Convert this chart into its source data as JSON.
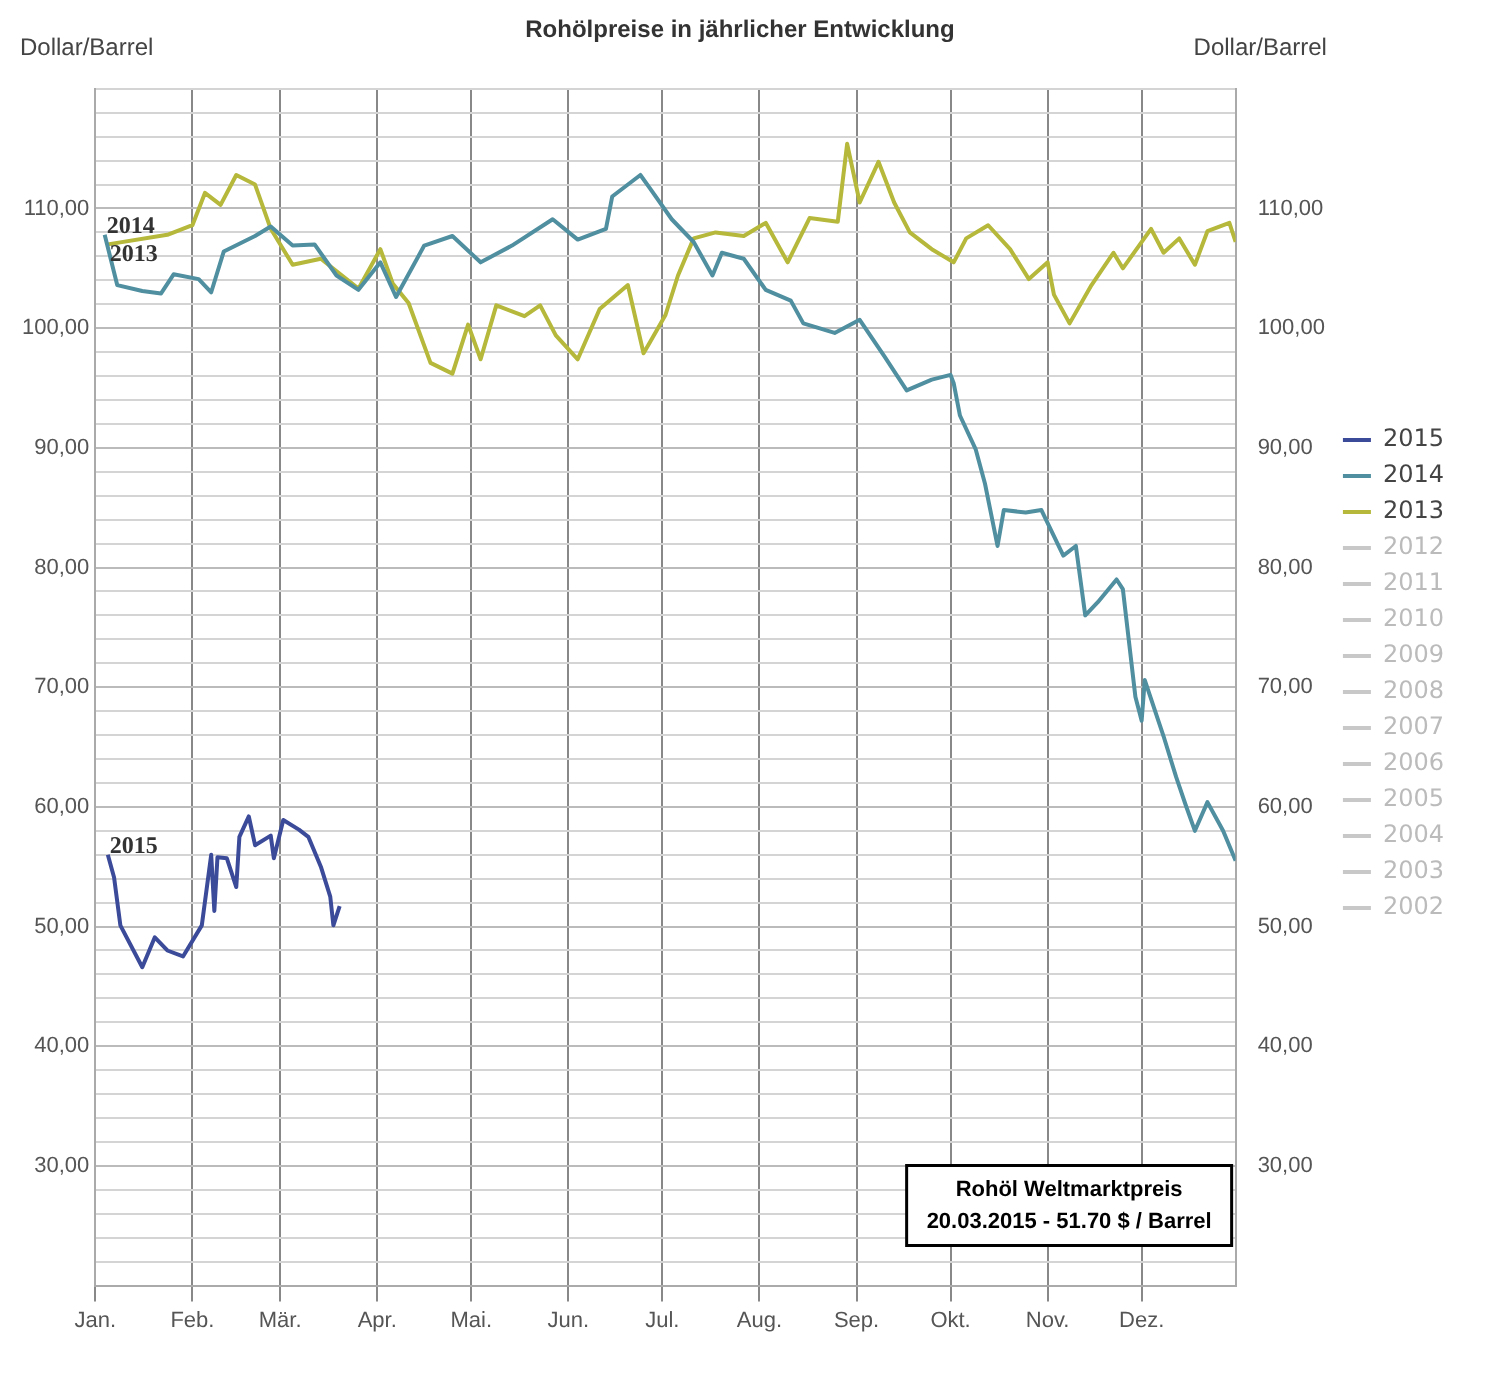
{
  "chart_data": {
    "type": "line",
    "title": "Rohölpreise in jährlicher Entwicklung",
    "ylabel": "Dollar/Barrel",
    "y2label": "Dollar/Barrel",
    "annotations": [
      "Rohöl Weltmarktpreis",
      "20.03.2015 - 51.70 $ / Barrel"
    ],
    "xlim": [
      "--01-01",
      "--12-31"
    ],
    "xticks": [
      {
        "value": "--01-01",
        "label": "Jan."
      },
      {
        "value": "--02-01",
        "label": "Feb."
      },
      {
        "value": "--03-01",
        "label": "Mär."
      },
      {
        "value": "--04-01",
        "label": "Apr."
      },
      {
        "value": "--05-01",
        "label": "Mai."
      },
      {
        "value": "--06-01",
        "label": "Jun."
      },
      {
        "value": "--07-01",
        "label": "Jul."
      },
      {
        "value": "--08-01",
        "label": "Aug."
      },
      {
        "value": "--09-01",
        "label": "Sep."
      },
      {
        "value": "--10-01",
        "label": "Okt."
      },
      {
        "value": "--11-01",
        "label": "Nov."
      },
      {
        "value": "--12-01",
        "label": "Dez."
      }
    ],
    "ylim": [
      20,
      120
    ],
    "yticks": [
      {
        "value": 20,
        "label": null
      },
      {
        "value": 22,
        "label": null
      },
      {
        "value": 24,
        "label": null
      },
      {
        "value": 26,
        "label": null
      },
      {
        "value": 28,
        "label": null
      },
      {
        "value": 30,
        "label": "30,00"
      },
      {
        "value": 32,
        "label": null
      },
      {
        "value": 34,
        "label": null
      },
      {
        "value": 36,
        "label": null
      },
      {
        "value": 38,
        "label": null
      },
      {
        "value": 40,
        "label": "40,00"
      },
      {
        "value": 42,
        "label": null
      },
      {
        "value": 44,
        "label": null
      },
      {
        "value": 46,
        "label": null
      },
      {
        "value": 48,
        "label": null
      },
      {
        "value": 50,
        "label": "50,00"
      },
      {
        "value": 52,
        "label": null
      },
      {
        "value": 54,
        "label": null
      },
      {
        "value": 56,
        "label": null
      },
      {
        "value": 58,
        "label": null
      },
      {
        "value": 60,
        "label": "60,00"
      },
      {
        "value": 62,
        "label": null
      },
      {
        "value": 64,
        "label": null
      },
      {
        "value": 66,
        "label": null
      },
      {
        "value": 68,
        "label": null
      },
      {
        "value": 70,
        "label": "70,00"
      },
      {
        "value": 72,
        "label": null
      },
      {
        "value": 74,
        "label": null
      },
      {
        "value": 76,
        "label": null
      },
      {
        "value": 78,
        "label": null
      },
      {
        "value": 80,
        "label": "80,00"
      },
      {
        "value": 82,
        "label": null
      },
      {
        "value": 84,
        "label": null
      },
      {
        "value": 86,
        "label": null
      },
      {
        "value": 88,
        "label": null
      },
      {
        "value": 90,
        "label": "90,00"
      },
      {
        "value": 92,
        "label": null
      },
      {
        "value": 94,
        "label": null
      },
      {
        "value": 96,
        "label": null
      },
      {
        "value": 98,
        "label": null
      },
      {
        "value": 100,
        "label": "100,00"
      },
      {
        "value": 102,
        "label": null
      },
      {
        "value": 104,
        "label": null
      },
      {
        "value": 106,
        "label": null
      },
      {
        "value": 108,
        "label": null
      },
      {
        "value": 110,
        "label": "110,00"
      },
      {
        "value": 112,
        "label": null
      },
      {
        "value": 114,
        "label": null
      },
      {
        "value": 116,
        "label": null
      },
      {
        "value": 118,
        "label": null
      },
      {
        "value": 120,
        "label": null
      }
    ],
    "y2lim": [
      20,
      120
    ],
    "y2ticks": [
      {
        "value": 30,
        "label": "30,00"
      },
      {
        "value": 40,
        "label": "40,00"
      },
      {
        "value": 50,
        "label": "50,00"
      },
      {
        "value": 60,
        "label": "60,00"
      },
      {
        "value": 70,
        "label": "70,00"
      },
      {
        "value": 80,
        "label": "80,00"
      },
      {
        "value": 90,
        "label": "90,00"
      },
      {
        "value": 100,
        "label": "100,00"
      },
      {
        "value": 110,
        "label": "110,00"
      }
    ],
    "grid": true,
    "legend": "right",
    "marker": "none",
    "line_style": "solid",
    "series": [
      {
        "name": "2015",
        "color": "#3c4a9a",
        "x": [
          "--01-05",
          "--01-07",
          "--01-09",
          "--01-16",
          "--01-20",
          "--01-24",
          "--01-29",
          "--02-04",
          "--02-07",
          "--02-08",
          "--02-09",
          "--02-12",
          "--02-15",
          "--02-16",
          "--02-19",
          "--02-21",
          "--02-26",
          "--02-27",
          "--03-02",
          "--03-07",
          "--03-10",
          "--03-14",
          "--03-17",
          "--03-18",
          "--03-20"
        ],
        "values": [
          56.0,
          54.1,
          50.1,
          46.6,
          49.1,
          48.0,
          47.5,
          50.1,
          56.0,
          51.3,
          55.8,
          55.7,
          53.3,
          57.5,
          59.2,
          56.8,
          57.6,
          55.7,
          58.9,
          58.1,
          57.5,
          55.0,
          52.5,
          50.1,
          51.7
        ]
      },
      {
        "name": "2014",
        "color": "#4f8fa0",
        "x": [
          "--01-04",
          "--01-08",
          "--01-16",
          "--01-22",
          "--01-26",
          "--02-03",
          "--02-07",
          "--02-11",
          "--02-21",
          "--02-26",
          "--03-05",
          "--03-12",
          "--03-19",
          "--03-26",
          "--04-02",
          "--04-07",
          "--04-16",
          "--04-25",
          "--05-04",
          "--05-14",
          "--05-27",
          "--06-04",
          "--06-13",
          "--06-15",
          "--06-24",
          "--06-27",
          "--07-04",
          "--07-11",
          "--07-17",
          "--07-20",
          "--07-27",
          "--08-03",
          "--08-11",
          "--08-15",
          "--08-25",
          "--09-02",
          "--09-10",
          "--09-17",
          "--09-25",
          "--10-01",
          "--10-02",
          "--10-04",
          "--10-09",
          "--10-12",
          "--10-16",
          "--10-18",
          "--10-25",
          "--10-30",
          "--11-06",
          "--11-10",
          "--11-13",
          "--11-17",
          "--11-23",
          "--11-25",
          "--11-29",
          "--12-01",
          "--12-02",
          "--12-08",
          "--12-12",
          "--12-15",
          "--12-18",
          "--12-22",
          "--12-27",
          "--12-31"
        ],
        "values": [
          107.8,
          103.6,
          103.1,
          102.9,
          104.5,
          104.1,
          103.0,
          106.4,
          107.7,
          108.5,
          106.9,
          107.0,
          104.4,
          103.2,
          105.5,
          102.6,
          106.9,
          107.7,
          105.5,
          106.9,
          109.1,
          107.4,
          108.3,
          111.0,
          112.8,
          111.7,
          109.1,
          107.2,
          104.4,
          106.3,
          105.8,
          103.2,
          102.3,
          100.4,
          99.6,
          100.7,
          97.6,
          94.8,
          95.7,
          96.1,
          95.4,
          92.7,
          89.9,
          87.0,
          81.8,
          84.8,
          84.6,
          84.8,
          81.0,
          81.8,
          76.0,
          77.1,
          79.0,
          78.2,
          69.2,
          67.2,
          70.6,
          65.9,
          62.5,
          60.2,
          58.0,
          60.4,
          58.0,
          55.5
        ]
      },
      {
        "name": "2013",
        "color": "#b5b83a",
        "x": [
          "--01-05",
          "--01-24",
          "--02-01",
          "--02-05",
          "--02-10",
          "--02-15",
          "--02-21",
          "--02-26",
          "--03-05",
          "--03-14",
          "--03-26",
          "--04-02",
          "--04-06",
          "--04-11",
          "--04-18",
          "--04-25",
          "--04-30",
          "--05-04",
          "--05-09",
          "--05-18",
          "--05-23",
          "--05-28",
          "--06-04",
          "--06-11",
          "--06-20",
          "--06-25",
          "--06-27",
          "--07-02",
          "--07-06",
          "--07-11",
          "--07-18",
          "--07-27",
          "--08-03",
          "--08-10",
          "--08-17",
          "--08-26",
          "--08-29",
          "--09-02",
          "--09-08",
          "--09-13",
          "--09-18",
          "--09-25",
          "--10-02",
          "--10-06",
          "--10-13",
          "--10-20",
          "--10-26",
          "--11-01",
          "--11-03",
          "--11-08",
          "--11-15",
          "--11-22",
          "--11-25",
          "--12-04",
          "--12-08",
          "--12-13",
          "--12-18",
          "--12-22",
          "--12-29",
          "--12-31"
        ],
        "values": [
          107.0,
          107.8,
          108.6,
          111.3,
          110.3,
          112.8,
          112.0,
          108.3,
          105.3,
          105.8,
          103.3,
          106.6,
          103.7,
          102.1,
          97.1,
          96.2,
          100.3,
          97.4,
          101.9,
          101.0,
          101.9,
          99.4,
          97.4,
          101.6,
          103.6,
          97.9,
          98.8,
          101.1,
          104.4,
          107.5,
          108.0,
          107.7,
          108.8,
          105.5,
          109.2,
          108.9,
          115.4,
          110.5,
          113.9,
          110.5,
          108.0,
          106.6,
          105.5,
          107.5,
          108.6,
          106.6,
          104.1,
          105.5,
          102.8,
          100.4,
          103.6,
          106.3,
          105.0,
          108.3,
          106.3,
          107.5,
          105.3,
          108.1,
          108.8,
          107.2
        ]
      },
      {
        "name": "2012",
        "color": "#c8c8c8"
      },
      {
        "name": "2011",
        "color": "#c8c8c8"
      },
      {
        "name": "2010",
        "color": "#c8c8c8"
      },
      {
        "name": "2009",
        "color": "#c8c8c8"
      },
      {
        "name": "2008",
        "color": "#c8c8c8"
      },
      {
        "name": "2007",
        "color": "#c8c8c8"
      },
      {
        "name": "2006",
        "color": "#c8c8c8"
      },
      {
        "name": "2005",
        "color": "#c8c8c8"
      },
      {
        "name": "2004",
        "color": "#c8c8c8"
      },
      {
        "name": "2003",
        "color": "#c8c8c8"
      },
      {
        "name": "2002",
        "color": "#c8c8c8"
      }
    ]
  }
}
